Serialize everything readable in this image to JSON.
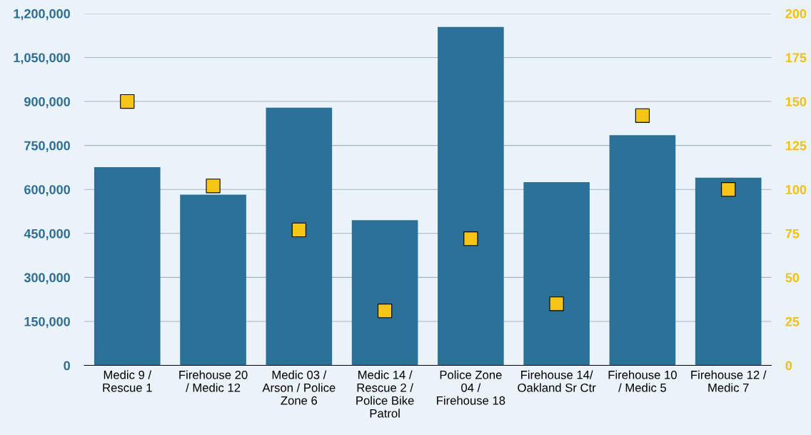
{
  "chart_data": {
    "type": "bar",
    "categories": [
      "Medic 9 /\nRescue 1",
      "Firehouse 20\n/ Medic 12",
      "Medic 03 /\nArson / Police\nZone 6",
      "Medic 14 /\nRescue 2 /\nPolice Bike\nPatrol",
      "Police Zone\n04 /\nFirehouse 18",
      "Firehouse 14/\nOakland Sr Ctr",
      "Firehouse 10\n/ Medic 5",
      "Firehouse 12 /\nMedic 7"
    ],
    "series": [
      {
        "color": "#2b7197",
        "values": [
          676000,
          582000,
          879000,
          495000,
          1154000,
          625000,
          785000,
          640000
        ]
      },
      {
        "type": "scatter",
        "axis": "y2",
        "color": "#f5c518",
        "marker": "square",
        "values": [
          150,
          102,
          77,
          31,
          72,
          35,
          142,
          100
        ]
      }
    ],
    "ylim": [
      0,
      1200000
    ],
    "yticks": [
      {
        "value": 0,
        "label": "0"
      },
      {
        "value": 150000,
        "label": "150,000"
      },
      {
        "value": 300000,
        "label": "300,000"
      },
      {
        "value": 450000,
        "label": "450,000"
      },
      {
        "value": 600000,
        "label": "600,000"
      },
      {
        "value": 750000,
        "label": "750,000"
      },
      {
        "value": 900000,
        "label": "900,000"
      },
      {
        "value": 1050000,
        "label": "1,050,000"
      },
      {
        "value": 1200000,
        "label": "1,200,000"
      }
    ],
    "y2lim": [
      0,
      200
    ],
    "y2ticks": [
      0,
      25,
      50,
      75,
      100,
      125,
      150,
      175,
      200
    ],
    "grid": "y",
    "legend": false
  }
}
